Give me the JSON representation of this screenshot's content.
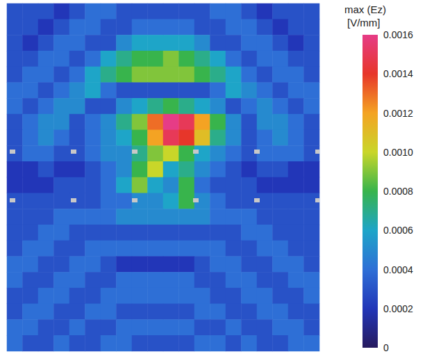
{
  "chart_data": {
    "type": "heatmap",
    "tick_labels": false,
    "cells": [
      [
        0.0003,
        0.0003,
        0.0003,
        0.0002,
        0.0003,
        0.0004,
        0.0004,
        0.0003,
        0.0003,
        0.0003,
        0.0003,
        0.0003,
        0.0003,
        0.0004,
        0.0004,
        0.0003,
        0.0002,
        0.0003,
        0.0003,
        0.0003
      ],
      [
        0.0003,
        0.0003,
        0.0002,
        0.0003,
        0.0004,
        0.0004,
        0.0003,
        0.0003,
        0.0004,
        0.0004,
        0.0004,
        0.0004,
        0.0003,
        0.0003,
        0.0004,
        0.0004,
        0.0003,
        0.0002,
        0.0003,
        0.0003
      ],
      [
        0.0003,
        0.0002,
        0.0003,
        0.0004,
        0.0004,
        0.0003,
        0.0003,
        0.0005,
        0.0006,
        0.0006,
        0.0006,
        0.0006,
        0.0005,
        0.0003,
        0.0003,
        0.0004,
        0.0004,
        0.0003,
        0.0002,
        0.0003
      ],
      [
        0.0003,
        0.0003,
        0.0004,
        0.0004,
        0.0003,
        0.0004,
        0.0006,
        0.0007,
        0.0008,
        0.0008,
        0.0009,
        0.0008,
        0.0007,
        0.0006,
        0.0004,
        0.0003,
        0.0004,
        0.0004,
        0.0003,
        0.0003
      ],
      [
        0.0003,
        0.0004,
        0.0004,
        0.0003,
        0.0004,
        0.0006,
        0.0007,
        0.0008,
        0.0009,
        0.0009,
        0.0009,
        0.0009,
        0.0008,
        0.0007,
        0.0006,
        0.0004,
        0.0003,
        0.0004,
        0.0004,
        0.0003
      ],
      [
        0.0004,
        0.0004,
        0.0003,
        0.0004,
        0.0005,
        0.0006,
        0.0004,
        0.0003,
        0.0003,
        0.0003,
        0.0003,
        0.0003,
        0.0003,
        0.0004,
        0.0006,
        0.0005,
        0.0004,
        0.0003,
        0.0004,
        0.0004
      ],
      [
        0.0004,
        0.0003,
        0.0004,
        0.0005,
        0.0005,
        0.0003,
        0.0003,
        0.0005,
        0.0006,
        0.0007,
        0.0008,
        0.0007,
        0.0006,
        0.0005,
        0.0003,
        0.0004,
        0.0005,
        0.0004,
        0.0003,
        0.0004
      ],
      [
        0.0003,
        0.0004,
        0.0005,
        0.0005,
        0.0003,
        0.0004,
        0.0005,
        0.0007,
        0.0009,
        0.0013,
        0.0016,
        0.0015,
        0.0012,
        0.0008,
        0.0005,
        0.0003,
        0.0005,
        0.0005,
        0.0004,
        0.0003
      ],
      [
        0.0003,
        0.0004,
        0.0005,
        0.0004,
        0.0003,
        0.0004,
        0.0005,
        0.0006,
        0.0008,
        0.0012,
        0.0015,
        0.0014,
        0.0011,
        0.0007,
        0.0005,
        0.0003,
        0.0004,
        0.0005,
        0.0004,
        0.0003
      ],
      [
        0.0003,
        0.0004,
        0.0004,
        0.0003,
        0.0003,
        0.0004,
        0.0005,
        0.0005,
        0.0007,
        0.0009,
        0.001,
        0.0008,
        0.0006,
        0.0005,
        0.0004,
        0.0003,
        0.0004,
        0.0004,
        0.0004,
        0.0003
      ],
      [
        0.0002,
        0.0002,
        0.0003,
        0.0002,
        0.0002,
        0.0003,
        0.0004,
        0.0005,
        0.0008,
        0.001,
        0.0006,
        0.0007,
        0.0005,
        0.0004,
        0.0003,
        0.0002,
        0.0003,
        0.0003,
        0.0002,
        0.0002
      ],
      [
        0.0002,
        0.0002,
        0.0002,
        0.0003,
        0.0003,
        0.0003,
        0.0004,
        0.0006,
        0.0009,
        0.0006,
        0.0005,
        0.0008,
        0.0004,
        0.0003,
        0.0003,
        0.0003,
        0.0002,
        0.0002,
        0.0002,
        0.0002
      ],
      [
        0.0003,
        0.0003,
        0.0003,
        0.0003,
        0.0003,
        0.0003,
        0.0004,
        0.0004,
        0.0005,
        0.0005,
        0.0006,
        0.0008,
        0.0005,
        0.0004,
        0.0003,
        0.0003,
        0.0003,
        0.0003,
        0.0003,
        0.0003
      ],
      [
        0.0003,
        0.0003,
        0.0003,
        0.0004,
        0.0004,
        0.0004,
        0.0004,
        0.0005,
        0.0005,
        0.0005,
        0.0005,
        0.0005,
        0.0005,
        0.0004,
        0.0004,
        0.0004,
        0.0003,
        0.0003,
        0.0003,
        0.0003
      ],
      [
        0.0003,
        0.0003,
        0.0004,
        0.0004,
        0.0003,
        0.0003,
        0.0003,
        0.0003,
        0.0003,
        0.0003,
        0.0003,
        0.0003,
        0.0003,
        0.0003,
        0.0003,
        0.0004,
        0.0004,
        0.0003,
        0.0003,
        0.0003
      ],
      [
        0.0003,
        0.0004,
        0.0004,
        0.0003,
        0.0003,
        0.0004,
        0.0004,
        0.0004,
        0.0004,
        0.0004,
        0.0004,
        0.0004,
        0.0004,
        0.0004,
        0.0003,
        0.0003,
        0.0004,
        0.0004,
        0.0003,
        0.0003
      ],
      [
        0.0004,
        0.0004,
        0.0003,
        0.0003,
        0.0004,
        0.0004,
        0.0003,
        0.0002,
        0.0002,
        0.0002,
        0.0002,
        0.0002,
        0.0003,
        0.0004,
        0.0004,
        0.0003,
        0.0003,
        0.0004,
        0.0004,
        0.0003
      ],
      [
        0.0004,
        0.0003,
        0.0003,
        0.0004,
        0.0004,
        0.0003,
        0.0003,
        0.0004,
        0.0004,
        0.0004,
        0.0004,
        0.0004,
        0.0003,
        0.0003,
        0.0004,
        0.0004,
        0.0003,
        0.0003,
        0.0004,
        0.0004
      ],
      [
        0.0003,
        0.0003,
        0.0004,
        0.0004,
        0.0003,
        0.0003,
        0.0004,
        0.0004,
        0.0004,
        0.0004,
        0.0004,
        0.0004,
        0.0004,
        0.0003,
        0.0003,
        0.0004,
        0.0004,
        0.0003,
        0.0003,
        0.0004
      ],
      [
        0.0003,
        0.0004,
        0.0004,
        0.0003,
        0.0003,
        0.0004,
        0.0004,
        0.0003,
        0.0003,
        0.0003,
        0.0003,
        0.0003,
        0.0004,
        0.0004,
        0.0003,
        0.0003,
        0.0004,
        0.0004,
        0.0003,
        0.0003
      ],
      [
        0.0004,
        0.0004,
        0.0003,
        0.0003,
        0.0004,
        0.0003,
        0.0003,
        0.0004,
        0.0004,
        0.0004,
        0.0004,
        0.0004,
        0.0003,
        0.0003,
        0.0004,
        0.0003,
        0.0003,
        0.0004,
        0.0004,
        0.0003
      ],
      [
        0.0004,
        0.0003,
        0.0003,
        0.0004,
        0.0003,
        0.0003,
        0.0004,
        0.0004,
        0.0003,
        0.0003,
        0.0003,
        0.0003,
        0.0004,
        0.0004,
        0.0003,
        0.0004,
        0.0003,
        0.0003,
        0.0004,
        0.0004
      ]
    ],
    "colorbar": {
      "title": "max (Ez)",
      "unit": "[V/mm]",
      "range": [
        0,
        0.0016
      ],
      "ticks": [
        0,
        0.0002,
        0.0004,
        0.0006,
        0.0008,
        {
          "value": 0.001,
          "label": "0.0010"
        },
        0.0012,
        0.0014,
        0.0016
      ],
      "colors": [
        "#261a5e",
        "#2236b8",
        "#2e6fd6",
        "#1ea5c8",
        "#38b44c",
        "#c9d629",
        "#f4a323",
        "#e7362a",
        "#e63c86"
      ]
    }
  }
}
